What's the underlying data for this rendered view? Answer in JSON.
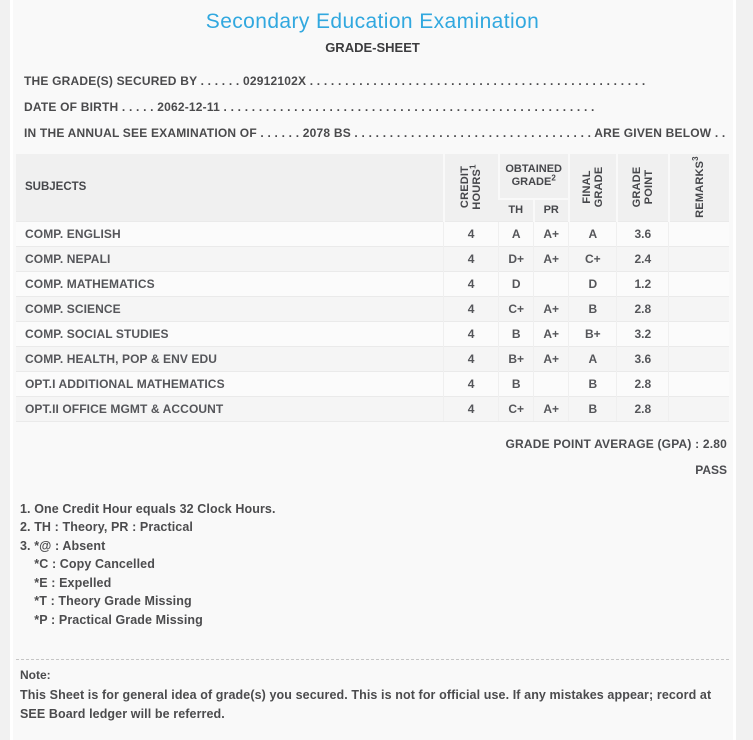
{
  "colors": {
    "accent": "#31A8DF",
    "header_bg": "#f0f0f0"
  },
  "header": {
    "title": "Secondary Education Examination",
    "subtitle": "GRADE-SHEET"
  },
  "info_lines": [
    "THE GRADE(S) SECURED BY . . . . . . 02912102X . . . . . . . . . . . . . . . . . . . . . . . . . . . . . . . . . . . . . . . . . . . . . . . .",
    "DATE OF BIRTH . . . . . 2062-12-11 . . . . . . . . . . . . . . . . . . . . . . . . . . . . . . . . . . . . . . . . . . . . . . . . . . . . .",
    "IN THE ANNUAL SEE EXAMINATION OF . . . . . . 2078 BS . . . . . . . . . . . . . . . . . . . . . . . . . . . . . . . . . . ARE GIVEN BELOW . . ."
  ],
  "table": {
    "headers": {
      "subjects": "SUBJECTS",
      "credit_hours": "CREDIT HOURS",
      "credit_hours_sup": "1",
      "obtained_grade": "OBTAINED GRADE",
      "obtained_grade_sup": "2",
      "th": "TH",
      "pr": "PR",
      "final_grade": "FINAL GRADE",
      "grade_point": "GRADE POINT",
      "remarks": "REMARKS",
      "remarks_sup": "3"
    },
    "rows": [
      {
        "subject": "COMP. ENGLISH",
        "credit": "4",
        "th": "A",
        "pr": "A+",
        "final": "A",
        "gp": "3.6",
        "remarks": ""
      },
      {
        "subject": "COMP. NEPALI",
        "credit": "4",
        "th": "D+",
        "pr": "A+",
        "final": "C+",
        "gp": "2.4",
        "remarks": ""
      },
      {
        "subject": "COMP. MATHEMATICS",
        "credit": "4",
        "th": "D",
        "pr": "",
        "final": "D",
        "gp": "1.2",
        "remarks": ""
      },
      {
        "subject": "COMP. SCIENCE",
        "credit": "4",
        "th": "C+",
        "pr": "A+",
        "final": "B",
        "gp": "2.8",
        "remarks": ""
      },
      {
        "subject": "COMP. SOCIAL STUDIES",
        "credit": "4",
        "th": "B",
        "pr": "A+",
        "final": "B+",
        "gp": "3.2",
        "remarks": ""
      },
      {
        "subject": "COMP. HEALTH, POP & ENV EDU",
        "credit": "4",
        "th": "B+",
        "pr": "A+",
        "final": "A",
        "gp": "3.6",
        "remarks": ""
      },
      {
        "subject": "OPT.I ADDITIONAL MATHEMATICS",
        "credit": "4",
        "th": "B",
        "pr": "",
        "final": "B",
        "gp": "2.8",
        "remarks": ""
      },
      {
        "subject": "OPT.II OFFICE MGMT & ACCOUNT",
        "credit": "4",
        "th": "C+",
        "pr": "A+",
        "final": "B",
        "gp": "2.8",
        "remarks": ""
      }
    ]
  },
  "summary": {
    "gpa_text": "GRADE POINT AVERAGE (GPA) : 2.80",
    "result": "PASS"
  },
  "footnotes": [
    "1. One Credit Hour equals 32 Clock Hours.",
    "2. TH : Theory, PR : Practical",
    "3. *@ : Absent",
    "    *C : Copy Cancelled",
    "    *E : Expelled",
    "    *T : Theory Grade Missing",
    "    *P : Practical Grade Missing"
  ],
  "note": {
    "label": "Note:",
    "text": "This Sheet is for general idea of grade(s) you secured. This is not for official use. If any mistakes appear; record at SEE Board ledger will be referred."
  }
}
